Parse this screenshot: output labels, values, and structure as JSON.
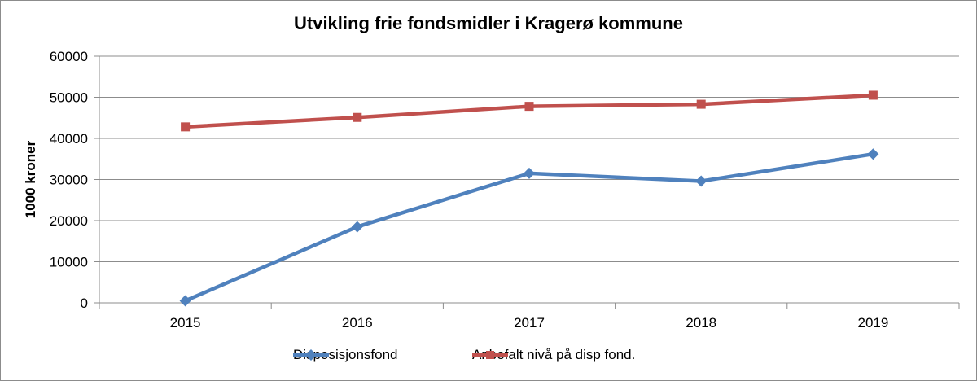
{
  "chart_data": {
    "type": "line",
    "title": "Utvikling frie fondsmidler i Kragerø kommune",
    "xlabel": "",
    "ylabel": "1000 kroner",
    "categories": [
      "2015",
      "2016",
      "2017",
      "2018",
      "2019"
    ],
    "ylim": [
      0,
      60000
    ],
    "yticks": [
      0,
      10000,
      20000,
      30000,
      40000,
      50000,
      60000
    ],
    "grid": true,
    "legend_position": "bottom",
    "series": [
      {
        "name": "Disposisjonsfond",
        "values": [
          500,
          18500,
          31500,
          29600,
          36200
        ],
        "color": "#4f81bd",
        "marker": "diamond"
      },
      {
        "name": "Anbefalt nivå på disp fond.",
        "values": [
          42800,
          45100,
          47800,
          48300,
          50500
        ],
        "color": "#c0504d",
        "marker": "square"
      }
    ]
  }
}
